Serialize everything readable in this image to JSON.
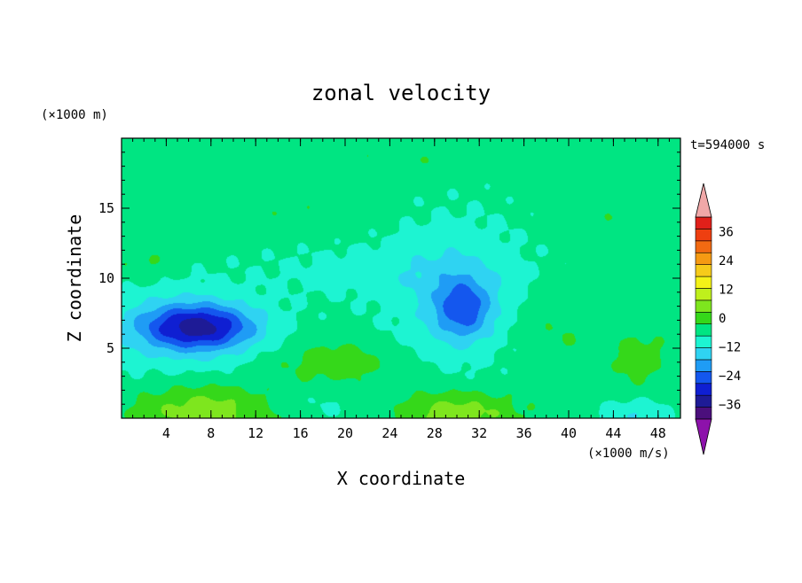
{
  "chart_data": {
    "type": "heatmap",
    "title": "zonal velocity",
    "xlabel": "X coordinate",
    "ylabel": "Z coordinate",
    "y_unit": "(×1000 m)",
    "colorbar_unit": "(×1000 m/s)",
    "time_label": "t=594000 s",
    "xlim": [
      0,
      50
    ],
    "ylim": [
      0,
      20
    ],
    "x_ticks": [
      4,
      8,
      12,
      16,
      20,
      24,
      28,
      32,
      36,
      40,
      44,
      48
    ],
    "x_tick_labels": [
      "4",
      "8",
      "12",
      "16",
      "20",
      "24",
      "28",
      "32",
      "36",
      "40",
      "44",
      "48"
    ],
    "y_ticks": [
      5,
      10,
      15
    ],
    "y_tick_labels": [
      "5",
      "10",
      "15"
    ],
    "colorbar": {
      "min": -42,
      "max": 42,
      "step": 6,
      "tick_values": [
        36,
        24,
        12,
        0,
        -12,
        -24,
        -36
      ],
      "tick_labels": [
        "36",
        "24",
        "12",
        "0",
        "−12",
        "−24",
        "−36"
      ],
      "colors": [
        "#4b0f7c",
        "#1e1b96",
        "#0f1fd2",
        "#1457ee",
        "#1f9cf5",
        "#2fd3f2",
        "#1df4d2",
        "#00e582",
        "#35d81a",
        "#7ee61e",
        "#bff01c",
        "#f4f218",
        "#f6cb1a",
        "#f59a13",
        "#f26a12",
        "#ee3f10",
        "#e0201a"
      ],
      "over_color": "#f0a8a8",
      "under_color": "#8d12ab"
    },
    "background_value": 2,
    "features": [
      {
        "x": 7,
        "z": 6.5,
        "sx": 5,
        "sz": 1.6,
        "value": -28
      },
      {
        "x": 5,
        "z": 6.4,
        "sx": 7,
        "sz": 3,
        "value": -9
      },
      {
        "x": 30.5,
        "z": 7.8,
        "sx": 2.6,
        "sz": 2.2,
        "value": -18
      },
      {
        "x": 30,
        "z": 9,
        "sx": 6,
        "sz": 5,
        "value": -8
      },
      {
        "x": 22,
        "z": 10.5,
        "sx": 10,
        "sz": 2,
        "value": -4
      },
      {
        "x": 7.5,
        "z": 0.5,
        "sx": 6,
        "sz": 1.8,
        "value": 14
      },
      {
        "x": 30,
        "z": 0.3,
        "sx": 5.5,
        "sz": 1.6,
        "value": 14
      },
      {
        "x": 19,
        "z": 4,
        "sx": 5,
        "sz": 1.5,
        "value": 8
      },
      {
        "x": 46.5,
        "z": 4.3,
        "sx": 2.6,
        "sz": 2,
        "value": 7
      },
      {
        "x": 39,
        "z": 6,
        "sx": 4,
        "sz": 3,
        "value": 4
      },
      {
        "x": 46,
        "z": 0.3,
        "sx": 3,
        "sz": 1,
        "value": -8
      },
      {
        "x": 18,
        "z": 0.8,
        "sx": 4,
        "sz": 1,
        "value": -3
      },
      {
        "x": 27,
        "z": 18.5,
        "sx": 14,
        "sz": 1,
        "value": 3
      },
      {
        "x": 16,
        "z": 14.5,
        "sx": 6,
        "sz": 1.5,
        "value": 3
      },
      {
        "x": 45,
        "z": 14.3,
        "sx": 5,
        "sz": 1.5,
        "value": 3
      },
      {
        "x": 2,
        "z": 11,
        "sx": 2.5,
        "sz": 1.2,
        "value": 5
      }
    ]
  }
}
